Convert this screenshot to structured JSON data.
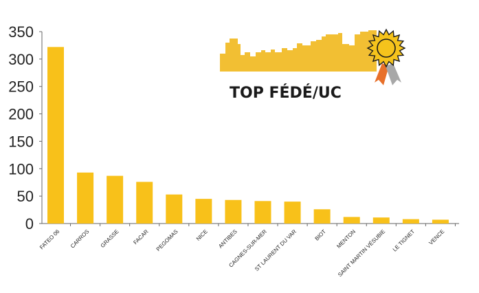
{
  "chart_data": {
    "type": "bar",
    "title": "TOP FÉDÉ/UC",
    "categories": [
      "FATEO 06",
      "CARROS",
      "GRASSE",
      "FACAR",
      "PEGOMAS",
      "NICE",
      "ANTIBES",
      "CAGNES-SUR-MER",
      "ST LAURENT DU VAR",
      "BIOT",
      "MENTON",
      "SAINT MARTIN VÉSUBIE",
      "LE TIGNET",
      "VENCE"
    ],
    "values": [
      322,
      93,
      87,
      76,
      53,
      45,
      43,
      41,
      40,
      26,
      12,
      11,
      8,
      7
    ],
    "ylim": [
      0,
      350
    ],
    "yticks": [
      0,
      50,
      100,
      150,
      200,
      250,
      300,
      350
    ],
    "xlabel": "",
    "ylabel": "",
    "grid": false,
    "colors": {
      "bar": "#F8C11A",
      "skyline": "#F2BF33",
      "medal": "#F5C31C",
      "ribbon_orange": "#E8702A",
      "ribbon_gray": "#A8A8A8",
      "axis": "#666666"
    }
  },
  "badge": {
    "text": "TOP FÉDÉ/UC",
    "icons": [
      "city-skyline-icon",
      "award-medal-icon"
    ]
  }
}
